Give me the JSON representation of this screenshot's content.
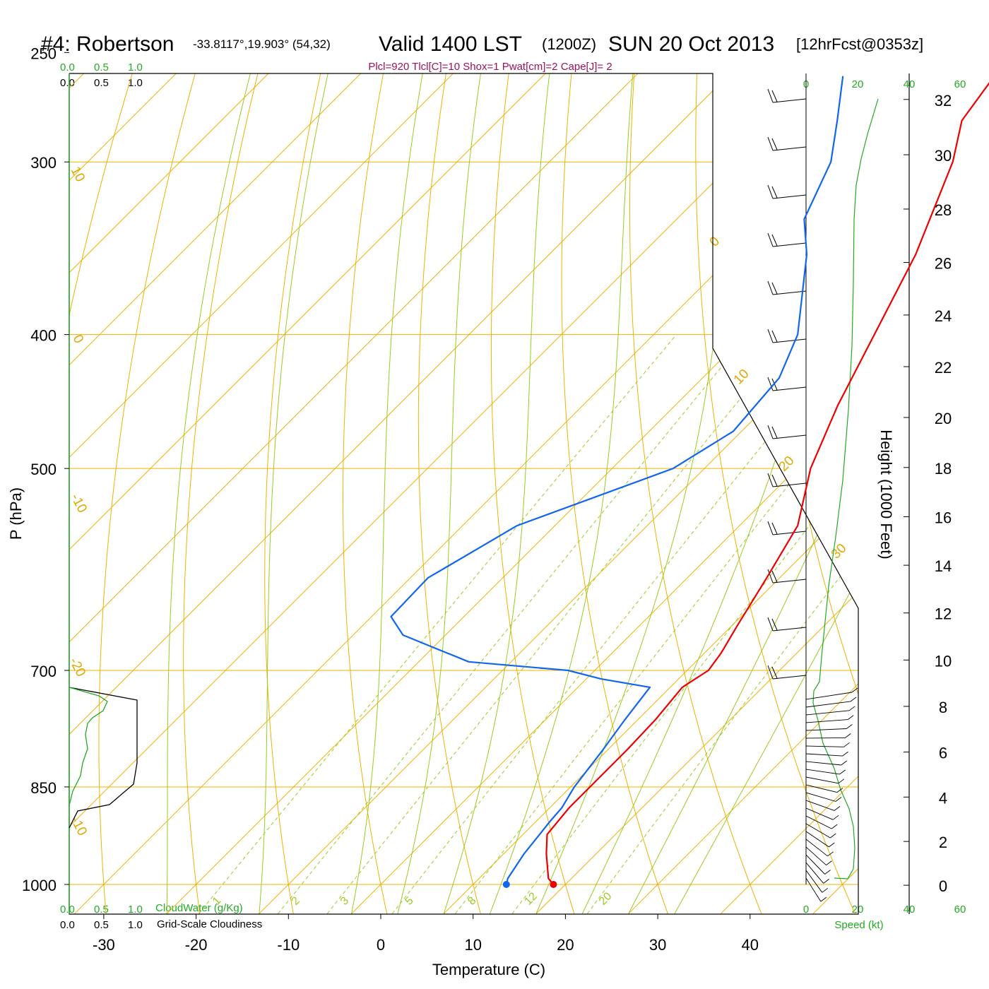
{
  "header": {
    "station": "#4: Robertson",
    "location": "-33.8117°,19.903° (54,32)",
    "valid": "Valid 1400 LST",
    "zulu": "(1200Z)",
    "date": "SUN 20 Oct 2013",
    "forecast": "[12hrFcst@0353z]"
  },
  "params_line": "Plcl=920 Tlcl[C]=10 Shox=1 Pwat[cm]=2 Cape[J]= 2",
  "cloud_panel": {
    "top_green_ticks": [
      "0.0",
      "0.5",
      "1.0"
    ],
    "top_black_ticks": [
      "0.0",
      "0.5",
      "1.0"
    ],
    "bottom_green_ticks": [
      "0.0",
      "0.5",
      "1.0"
    ],
    "bottom_black_ticks": [
      "0.0",
      "0.5",
      "1.0"
    ],
    "cloudwater_label": "CloudWater (g/Kg)",
    "cloudiness_label": "Grid-Scale Cloudiness",
    "cloudwater_color": "#22aa22",
    "cloudiness_color": "#000000"
  },
  "speed_panel": {
    "top_ticks": [
      "0",
      "20",
      "40",
      "60"
    ],
    "bottom_ticks": [
      "0",
      "20",
      "40",
      "60"
    ],
    "label": "Speed (kt)",
    "color": "#22aa22"
  },
  "height_axis": {
    "label": "Height (1000 Feet)",
    "ticks": [
      "0",
      "2",
      "4",
      "6",
      "8",
      "10",
      "12",
      "14",
      "16",
      "18",
      "20",
      "22",
      "24",
      "26",
      "28",
      "30",
      "32"
    ]
  },
  "colors": {
    "isotherm": "#f0b000",
    "dry_adiabat": "#f0b000",
    "moist_adiabat": "#99cc22",
    "mixing_ratio": "#99cc22",
    "temperature": "#ee0000",
    "dewpoint": "#1166ee",
    "params": "#a0105c"
  },
  "chart_data": {
    "type": "line",
    "title": "#4: Robertson -33.8117°,19.903° (54,32) Valid 1400 LST (1200Z) SUN 20 Oct 2013 [12hrFcst@0353z]",
    "xlabel": "Temperature (C)",
    "ylabel": "P (hPa)",
    "xlim": [
      -35,
      46
    ],
    "x_ticks": [
      "-30",
      "-20",
      "-10",
      "0",
      "10",
      "20",
      "30",
      "40"
    ],
    "y_scale": "log",
    "ylim": [
      1025,
      250
    ],
    "y_ticks": [
      "250",
      "300",
      "400",
      "500",
      "700",
      "850",
      "1000"
    ],
    "isotherm_labels": [
      "10",
      "0",
      "-10",
      "-20",
      "-10",
      "0",
      "10",
      "20",
      "30"
    ],
    "mixing_ratio_labels": [
      "1",
      "2",
      "3",
      "5",
      "8",
      "12",
      "20"
    ],
    "series": [
      {
        "name": "Temperature",
        "color": "#ee0000",
        "points": [
          {
            "p": 1000,
            "t": 18.7
          },
          {
            "p": 990,
            "t": 17.5
          },
          {
            "p": 950,
            "t": 14.6
          },
          {
            "p": 920,
            "t": 12.6
          },
          {
            "p": 880,
            "t": 12.1
          },
          {
            "p": 850,
            "t": 12.1
          },
          {
            "p": 800,
            "t": 12.1
          },
          {
            "p": 760,
            "t": 11.9
          },
          {
            "p": 720,
            "t": 11.3
          },
          {
            "p": 700,
            "t": 12.3
          },
          {
            "p": 680,
            "t": 11.8
          },
          {
            "p": 650,
            "t": 10.6
          },
          {
            "p": 600,
            "t": 8.6
          },
          {
            "p": 550,
            "t": 6.3
          },
          {
            "p": 500,
            "t": 1.5
          },
          {
            "p": 450,
            "t": -2.4
          },
          {
            "p": 400,
            "t": -6.1
          },
          {
            "p": 350,
            "t": -10.3
          },
          {
            "p": 300,
            "t": -16.3
          },
          {
            "p": 280,
            "t": -19.8
          },
          {
            "p": 260,
            "t": -21.1
          }
        ]
      },
      {
        "name": "Dewpoint",
        "color": "#1166ee",
        "points": [
          {
            "p": 1000,
            "t": 13.6
          },
          {
            "p": 990,
            "t": 13.1
          },
          {
            "p": 950,
            "t": 12.2
          },
          {
            "p": 900,
            "t": 11.5
          },
          {
            "p": 880,
            "t": 11.3
          },
          {
            "p": 850,
            "t": 10.4
          },
          {
            "p": 800,
            "t": 9.5
          },
          {
            "p": 760,
            "t": 8.6
          },
          {
            "p": 720,
            "t": 7.8
          },
          {
            "p": 710,
            "t": 1.6
          },
          {
            "p": 700,
            "t": -2.9
          },
          {
            "p": 690,
            "t": -14.6
          },
          {
            "p": 660,
            "t": -24.6
          },
          {
            "p": 640,
            "t": -27.9
          },
          {
            "p": 600,
            "t": -28.1
          },
          {
            "p": 550,
            "t": -24.1
          },
          {
            "p": 500,
            "t": -13.4
          },
          {
            "p": 470,
            "t": -10.9
          },
          {
            "p": 430,
            "t": -11.7
          },
          {
            "p": 400,
            "t": -14.4
          },
          {
            "p": 350,
            "t": -22.1
          },
          {
            "p": 330,
            "t": -26.2
          },
          {
            "p": 300,
            "t": -29.5
          },
          {
            "p": 280,
            "t": -33.3
          },
          {
            "p": 260,
            "t": -37.5
          }
        ]
      }
    ]
  }
}
